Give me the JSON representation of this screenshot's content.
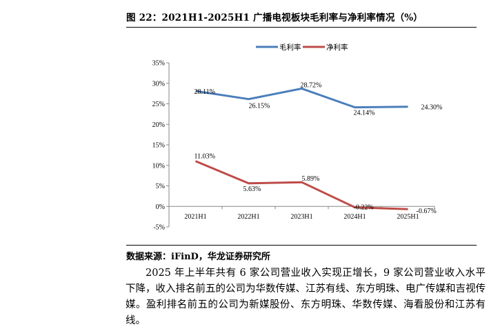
{
  "figure": {
    "title": "图 22：2021H1-2025H1 广播电视板块毛利率与净利率情况（%）",
    "source": "数据来源：iFinD，华龙证券研究所"
  },
  "paragraph": "2025 年上半年共有 6 家公司营业收入实现正增长，9 家公司营业收入水平下降，收入排名前五的公司为华数传媒、江苏有线、东方明珠、电广传媒和吉视传媒。盈利排名前五的公司为新媒股份、东方明珠、华数传媒、海看股份和江苏有线。",
  "colors": {
    "gross": "#4a7ebb",
    "net": "#be4b48",
    "axis": "#868686"
  },
  "chart_data": {
    "type": "line",
    "title": "",
    "xlabel": "",
    "ylabel": "",
    "categories": [
      "2021H1",
      "2022H1",
      "2023H1",
      "2024H1",
      "2025H1"
    ],
    "ylim": [
      -5,
      35
    ],
    "yticks": [
      -5,
      0,
      5,
      10,
      15,
      20,
      25,
      30,
      35
    ],
    "ytick_labels": [
      "-5%",
      "0%",
      "5%",
      "10%",
      "15%",
      "20%",
      "25%",
      "30%",
      "35%"
    ],
    "legend_position": "top-center",
    "grid": false,
    "series": [
      {
        "name": "毛利率",
        "color": "#4a7ebb",
        "values": [
          28.11,
          26.15,
          28.72,
          24.14,
          24.3
        ],
        "labels": [
          "28.11%",
          "26.15%",
          "28.72%",
          "24.14%",
          "24.30%"
        ]
      },
      {
        "name": "净利率",
        "color": "#be4b48",
        "values": [
          11.03,
          5.63,
          5.89,
          -0.22,
          -0.67
        ],
        "labels": [
          "11.03%",
          "5.63%",
          "5.89%",
          "-0.22%",
          "-0.67%"
        ]
      }
    ]
  }
}
